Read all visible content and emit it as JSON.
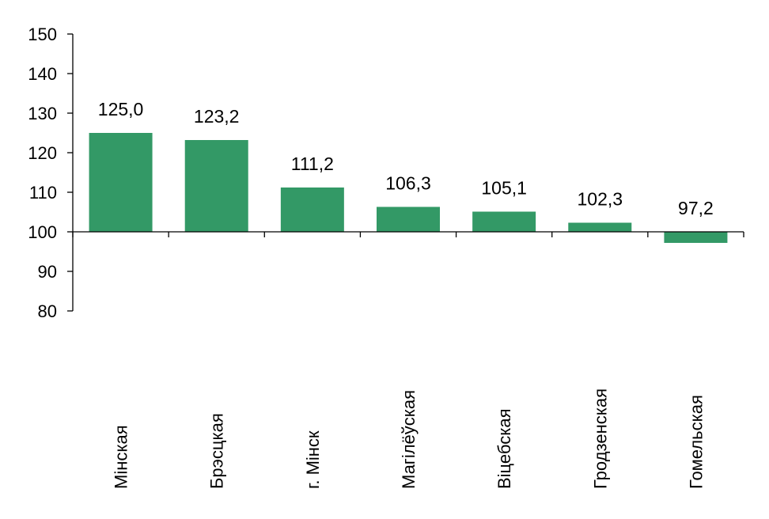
{
  "chart_data": {
    "type": "bar",
    "categories": [
      "Мінская",
      "Брэсцкая",
      "г. Мінск",
      "Магілёўская",
      "Віцебская",
      "Гродзенская",
      "Гомельская"
    ],
    "values": [
      125.0,
      123.2,
      111.2,
      106.3,
      105.1,
      102.3,
      97.2
    ],
    "value_labels": [
      "125,0",
      "123,2",
      "111,2",
      "106,3",
      "105,1",
      "102,3",
      "97,2"
    ],
    "baseline": 100,
    "ylim": [
      80,
      150
    ],
    "yticks": [
      80,
      90,
      100,
      110,
      120,
      130,
      140,
      150
    ],
    "ytick_labels": [
      "80",
      "90",
      "100",
      "110",
      "120",
      "130",
      "140",
      "150"
    ],
    "grid": false,
    "bar_color": "#339966",
    "axis_color": "#000000"
  }
}
